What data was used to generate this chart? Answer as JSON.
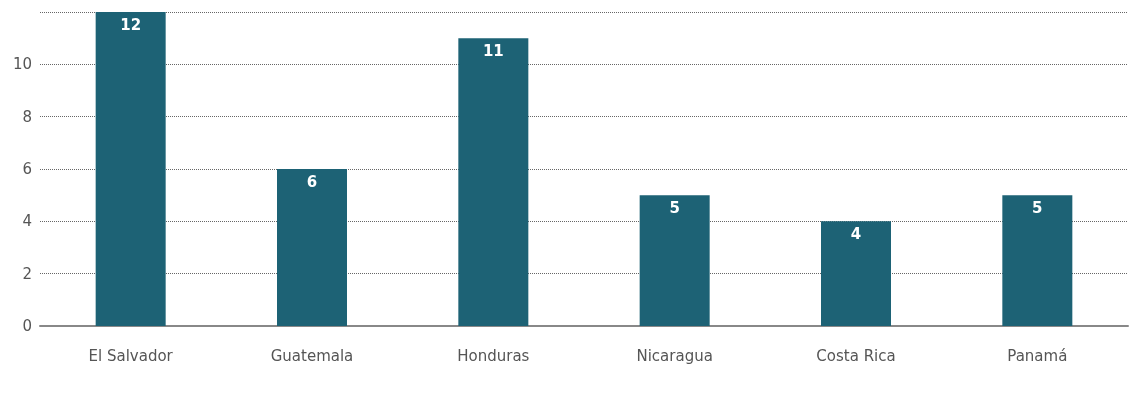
{
  "chart_data": {
    "type": "bar",
    "categories": [
      "El Salvador",
      "Guatemala",
      "Honduras",
      "Nicaragua",
      "Costa Rica",
      "Panamá"
    ],
    "values": [
      12,
      6,
      11,
      5,
      4,
      5
    ],
    "color": "#1d6275",
    "ylim": [
      0,
      12
    ],
    "yticks": [
      0,
      2,
      4,
      6,
      8,
      10,
      {
        "value": 12,
        "label": null
      }
    ],
    "grid": "y",
    "data_labels": true
  }
}
